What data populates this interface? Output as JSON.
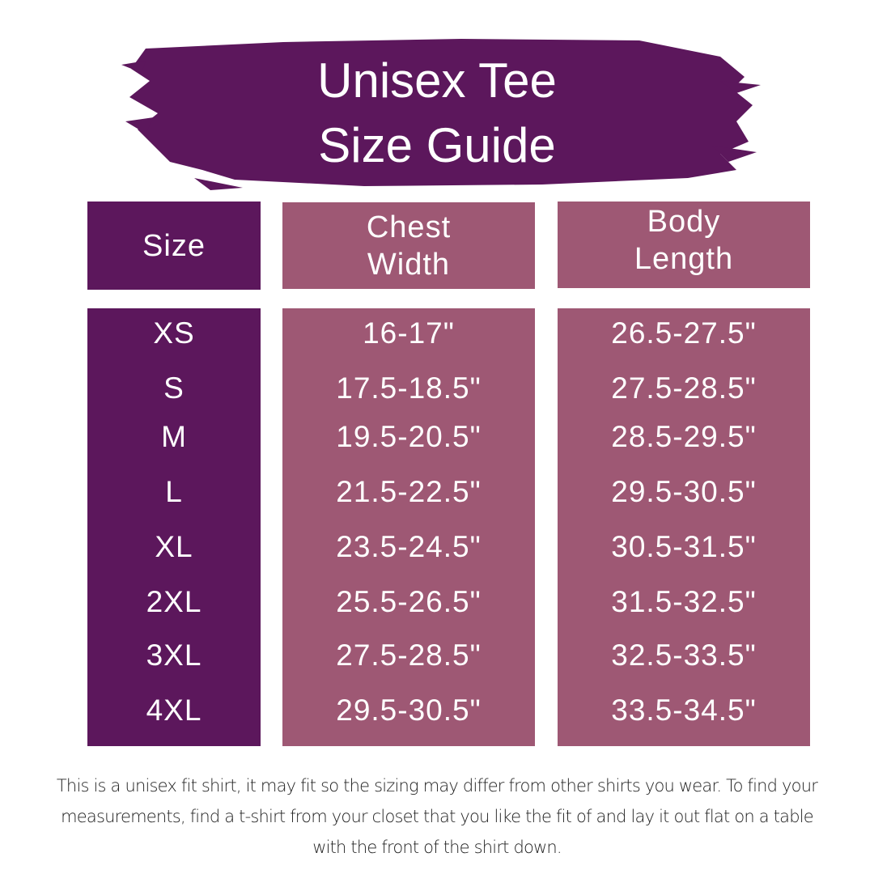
{
  "title": {
    "line1": "Unisex Tee",
    "line2": "Size Guide"
  },
  "colors": {
    "dark": "#5c175c",
    "mauve": "#9e5874",
    "text": "#ffffff"
  },
  "table": {
    "headers": [
      {
        "line1": "Size",
        "line2": ""
      },
      {
        "line1": "Chest",
        "line2": "Width"
      },
      {
        "line1": "Body",
        "line2": "Length"
      }
    ],
    "rows": [
      {
        "size": "XS",
        "chest": "16-17\"",
        "length": "26.5-27.5\""
      },
      {
        "size": "S",
        "chest": "17.5-18.5\"",
        "length": "27.5-28.5\""
      },
      {
        "size": "M",
        "chest": "19.5-20.5\"",
        "length": "28.5-29.5\""
      },
      {
        "size": "L",
        "chest": "21.5-22.5\"",
        "length": "29.5-30.5\""
      },
      {
        "size": "XL",
        "chest": "23.5-24.5\"",
        "length": "30.5-31.5\""
      },
      {
        "size": "2XL",
        "chest": "25.5-26.5\"",
        "length": "31.5-32.5\""
      },
      {
        "size": "3XL",
        "chest": "27.5-28.5\"",
        "length": "32.5-33.5\""
      },
      {
        "size": "4XL",
        "chest": "29.5-30.5\"",
        "length": "33.5-34.5\""
      }
    ]
  },
  "note": "This is a unisex fit shirt, it may fit so the sizing may differ from other shirts you wear. To find your measurements, find a t-shirt from your closet that you like the fit of and lay it out flat on a table with the front of the shirt down."
}
